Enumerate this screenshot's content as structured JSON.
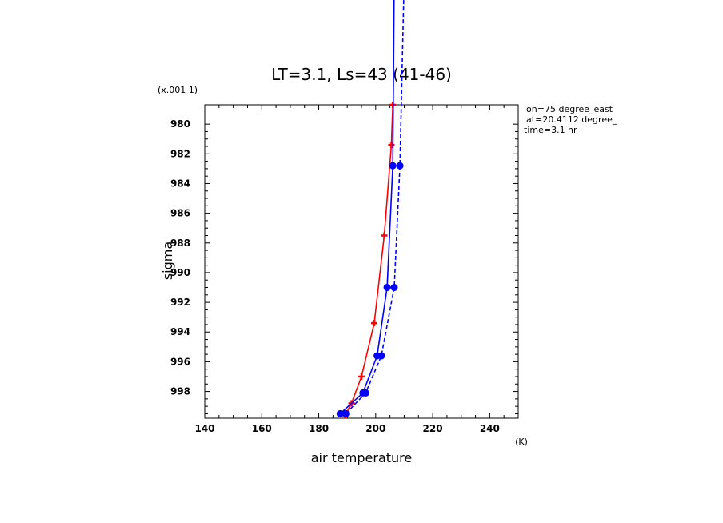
{
  "chart_data": {
    "type": "line",
    "title": "LT=3.1, Ls=43 (41-46)",
    "xlabel": "air temperature",
    "xunit": "(K)",
    "ylabel": "sigma",
    "yscale_label": "(x.001 1)",
    "xlim": [
      140,
      250
    ],
    "ylim": [
      999.8,
      978.7
    ],
    "xticks": [
      140,
      160,
      180,
      200,
      220,
      240
    ],
    "yticks": [
      980,
      982,
      984,
      986,
      988,
      990,
      992,
      994,
      996,
      998
    ],
    "annotations": [
      "lon=75 degree_east",
      "lat=20.4112 degree_",
      "time=3.1 hr"
    ],
    "series": [
      {
        "color": "#ff0000",
        "dash": false,
        "marker": "plus",
        "x": [
          189.3,
          191.5,
          195.0,
          199.5,
          203.0,
          205.5,
          206.0
        ],
        "y": [
          999.6,
          998.8,
          997.0,
          993.4,
          987.5,
          981.4,
          978.7
        ]
      },
      {
        "color": "#0000ff",
        "dash": false,
        "marker": "circle",
        "x": [
          187.5,
          195.5,
          200.5,
          204.0,
          206.0,
          206.5
        ],
        "y": [
          999.5,
          998.1,
          995.6,
          991.0,
          982.8,
          970.0
        ]
      },
      {
        "color": "#0000ff",
        "dash": true,
        "marker": "circle",
        "x": [
          189.5,
          196.5,
          202.0,
          206.5,
          208.5,
          210.0
        ],
        "y": [
          999.5,
          998.1,
          995.6,
          991.0,
          982.8,
          970.0
        ]
      }
    ]
  }
}
